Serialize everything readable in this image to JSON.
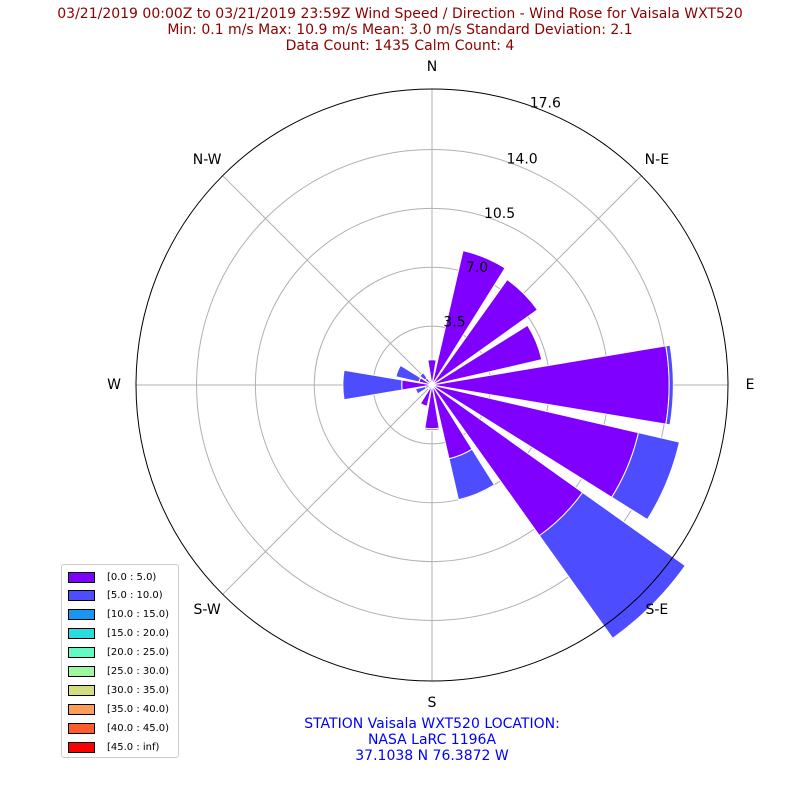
{
  "title": {
    "line1": "03/21/2019 00:00Z to 03/21/2019 23:59Z Wind Speed / Direction - Wind Rose for Vaisala WXT520",
    "line2": "Min: 0.1 m/s   Max: 10.9 m/s   Mean: 3.0 m/s  Standard Deviation: 2.1",
    "line3": "Data Count: 1435  Calm Count:  4",
    "color": "#8b0000"
  },
  "station": {
    "line1": "STATION Vaisala WXT520 LOCATION:",
    "line2": "NASA LaRC 1196A",
    "line3": "37.1038 N 76.3872 W",
    "color": "#0000ff"
  },
  "chart_data": {
    "type": "windrose",
    "directions": [
      "N",
      "NNE",
      "NE",
      "ENE",
      "E",
      "ESE",
      "SE",
      "SSE",
      "S",
      "SSW",
      "SW",
      "WSW",
      "W",
      "WNW",
      "NW",
      "NNW"
    ],
    "direction_angles_deg": [
      0,
      22.5,
      45,
      67.5,
      90,
      112.5,
      135,
      157.5,
      180,
      202.5,
      225,
      247.5,
      270,
      292.5,
      315,
      337.5
    ],
    "compass_labels": [
      "N",
      "N-E",
      "E",
      "S-E",
      "S",
      "S-W",
      "W",
      "N-W"
    ],
    "radial_ticks": [
      "3.5",
      "7.0",
      "10.5",
      "14.0",
      "17.6"
    ],
    "radial_tick_values": [
      3.5,
      7.0,
      10.5,
      14.0,
      17.6
    ],
    "rmax": 17.6,
    "series": [
      {
        "name": "[0.0 : 5.0)",
        "color": "#8000ff",
        "values": [
          1.5,
          8.2,
          7.7,
          6.7,
          14.1,
          12.6,
          11.0,
          4.5,
          2.6,
          1.3,
          0.3,
          0.4,
          1.8,
          0.8,
          0.5,
          0.3
        ]
      },
      {
        "name": "[5.0 : 10.0)",
        "color": "#4d4dff",
        "values": [
          0.0,
          0.0,
          0.0,
          0.0,
          0.25,
          2.5,
          7.5,
          2.5,
          0.1,
          0.0,
          0.0,
          0.6,
          3.5,
          1.4,
          0.4,
          0.0
        ]
      },
      {
        "name": "[10.0 : 15.0)",
        "color": "#1996f3",
        "values": [
          0,
          0,
          0,
          0,
          0,
          0,
          0,
          0,
          0,
          0,
          0,
          0,
          0,
          0,
          0,
          0
        ]
      },
      {
        "name": "[15.0 : 20.0)",
        "color": "#2adddd",
        "values": [
          0,
          0,
          0,
          0,
          0,
          0,
          0,
          0,
          0,
          0,
          0,
          0,
          0,
          0,
          0,
          0
        ]
      },
      {
        "name": "[20.0 : 25.0)",
        "color": "#62fbc4",
        "values": [
          0,
          0,
          0,
          0,
          0,
          0,
          0,
          0,
          0,
          0,
          0,
          0,
          0,
          0,
          0,
          0
        ]
      },
      {
        "name": "[25.0 : 30.0)",
        "color": "#9cf89c",
        "values": [
          0,
          0,
          0,
          0,
          0,
          0,
          0,
          0,
          0,
          0,
          0,
          0,
          0,
          0,
          0,
          0
        ]
      },
      {
        "name": "[30.0 : 35.0)",
        "color": "#d4dd80",
        "values": [
          0,
          0,
          0,
          0,
          0,
          0,
          0,
          0,
          0,
          0,
          0,
          0,
          0,
          0,
          0,
          0
        ]
      },
      {
        "name": "[35.0 : 40.0)",
        "color": "#ff9d57",
        "values": [
          0,
          0,
          0,
          0,
          0,
          0,
          0,
          0,
          0,
          0,
          0,
          0,
          0,
          0,
          0,
          0
        ]
      },
      {
        "name": "[40.0 : 45.0)",
        "color": "#ff5b2d",
        "values": [
          0,
          0,
          0,
          0,
          0,
          0,
          0,
          0,
          0,
          0,
          0,
          0,
          0,
          0,
          0,
          0
        ]
      },
      {
        "name": "[45.0 : inf)",
        "color": "#ff0000",
        "values": [
          0,
          0,
          0,
          0,
          0,
          0,
          0,
          0,
          0,
          0,
          0,
          0,
          0,
          0,
          0,
          0
        ]
      }
    ],
    "grid": true,
    "legend_position": "lower-left"
  }
}
